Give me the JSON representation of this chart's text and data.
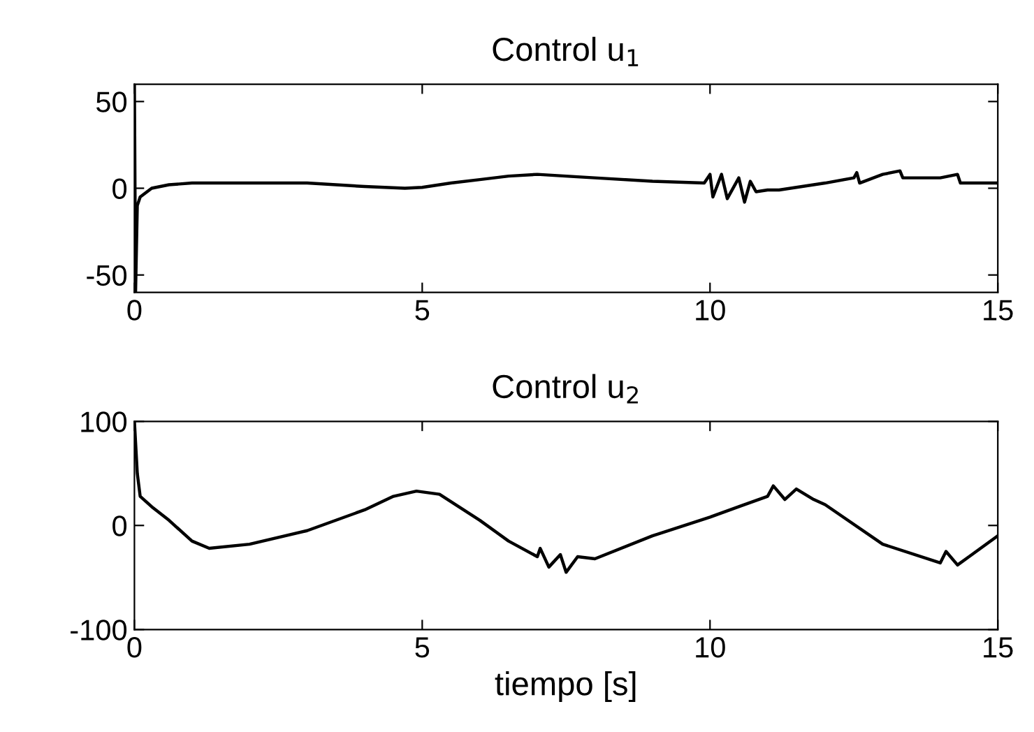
{
  "chart_data": [
    {
      "type": "line",
      "title": "Control u$_{1}$",
      "xlim": [
        0,
        15
      ],
      "xticks": [
        0,
        5,
        10,
        15
      ],
      "ylim": [
        -60,
        60
      ],
      "yticks": [
        -50,
        0,
        50
      ],
      "grid": false,
      "legend": false,
      "series": [
        {
          "color": "#000000",
          "x": [
            0,
            0.02,
            0.05,
            0.1,
            0.3,
            0.6,
            1,
            2,
            3,
            4,
            4.7,
            5,
            5.5,
            6,
            6.5,
            7,
            8,
            9,
            9.9,
            10,
            10.05,
            10.2,
            10.3,
            10.5,
            10.6,
            10.7,
            10.8,
            11,
            11.2,
            12,
            12.5,
            12.55,
            12.6,
            13,
            13.3,
            13.35,
            14,
            14.3,
            14.35,
            15
          ],
          "values": [
            60,
            -60,
            -10,
            -5,
            0,
            2,
            3,
            3,
            3,
            1,
            0,
            0.5,
            3,
            5,
            7,
            8,
            6,
            4,
            3,
            8,
            -5,
            8,
            -6,
            6,
            -8,
            4,
            -2,
            -1,
            -1,
            3,
            6,
            9,
            3,
            8,
            10,
            6,
            6,
            8,
            3,
            3
          ]
        }
      ]
    },
    {
      "type": "line",
      "title": "Control u$_{2}$",
      "xlabel": "tiempo [s]",
      "xlim": [
        0,
        15
      ],
      "xticks": [
        0,
        5,
        10,
        15
      ],
      "ylim": [
        -100,
        100
      ],
      "yticks": [
        -100,
        0,
        100
      ],
      "grid": false,
      "legend": false,
      "series": [
        {
          "color": "#000000",
          "x": [
            0,
            0.05,
            0.1,
            0.3,
            0.6,
            1,
            1.3,
            2,
            3,
            4,
            4.5,
            4.9,
            5.3,
            6,
            6.5,
            7,
            7.05,
            7.2,
            7.4,
            7.5,
            7.7,
            8,
            9,
            10,
            10.5,
            11,
            11.1,
            11.3,
            11.5,
            11.8,
            12,
            13,
            14,
            14.1,
            14.3,
            14.5,
            15
          ],
          "values": [
            100,
            50,
            28,
            18,
            5,
            -15,
            -22,
            -18,
            -5,
            15,
            28,
            33,
            30,
            5,
            -15,
            -30,
            -22,
            -40,
            -28,
            -45,
            -30,
            -32,
            -10,
            8,
            18,
            28,
            38,
            25,
            35,
            25,
            20,
            -18,
            -36,
            -25,
            -38,
            -30,
            -10
          ]
        }
      ]
    }
  ]
}
